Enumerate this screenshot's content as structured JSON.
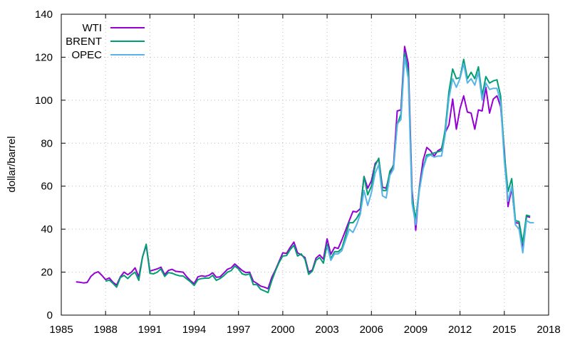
{
  "chart_data": {
    "type": "line",
    "title": "",
    "xlabel": "",
    "ylabel": "dollar/barrel",
    "xlim": [
      1985,
      2018
    ],
    "ylim": [
      0,
      140
    ],
    "xticks": [
      1985,
      1988,
      1991,
      1994,
      1997,
      2000,
      2003,
      2006,
      2009,
      2012,
      2015,
      2018
    ],
    "yticks": [
      0,
      20,
      40,
      60,
      80,
      100,
      120,
      140
    ],
    "grid": true,
    "legend": "top-left",
    "x_step": "quarterly",
    "series": [
      {
        "name": "WTI",
        "color": "#9400d3",
        "start": 1986.0,
        "values": [
          15.5,
          15.3,
          15,
          15.2,
          18,
          19.5,
          20.2,
          18.5,
          16.5,
          17.3,
          15.3,
          14,
          17.8,
          20,
          18.8,
          20,
          22,
          17.8,
          27,
          32.5,
          20.5,
          21,
          21.5,
          22.3,
          18.8,
          20.8,
          21.3,
          20.4,
          20.2,
          20,
          17.8,
          16,
          14.6,
          17.8,
          18.3,
          18,
          18.5,
          19.7,
          17.6,
          17.8,
          19.5,
          21.3,
          22,
          23.8,
          22.3,
          20.8,
          19.8,
          20,
          15.8,
          14.8,
          13.5,
          13,
          12.3,
          17.5,
          21,
          25,
          29,
          28.7,
          31.5,
          34,
          29,
          28,
          26.8,
          20,
          21,
          26.5,
          28,
          26,
          35.5,
          28.3,
          31.5,
          31,
          35,
          39.5,
          44,
          48.3,
          48,
          49.5,
          64.5,
          59,
          62.5,
          70.5,
          72.5,
          59.5,
          59,
          66,
          70,
          95,
          95.5,
          125,
          117,
          58,
          39.5,
          59.5,
          72,
          78,
          76.5,
          74,
          76.5,
          77.5,
          85,
          88.5,
          100.5,
          86.5,
          96,
          102,
          94.5,
          94,
          86.5,
          95.5,
          95,
          106,
          94,
          100.5,
          102,
          97,
          77,
          50.5,
          59,
          43,
          42.8,
          30.5,
          46,
          45.5
        ]
      },
      {
        "name": "BRENT",
        "color": "#009e73",
        "start": 1988.0,
        "values": [
          15.8,
          16.3,
          14.8,
          13,
          17.5,
          18.5,
          17,
          18.8,
          20,
          16.2,
          27,
          33,
          19.5,
          19.2,
          20,
          21.5,
          18,
          19.8,
          19.5,
          18.8,
          18.3,
          18.2,
          16.8,
          15.5,
          13.8,
          16.5,
          17,
          17.2,
          17.2,
          18.5,
          16.2,
          17,
          18.3,
          20,
          20.7,
          22.8,
          21.5,
          19.2,
          18.7,
          19.2,
          14.2,
          14.2,
          12,
          11.3,
          10.5,
          16,
          20.5,
          24.5,
          27.5,
          27.7,
          30.5,
          32.5,
          27.5,
          28.5,
          26,
          19,
          20.5,
          25.5,
          26.8,
          24.2,
          33,
          26.2,
          29.5,
          29.5,
          31,
          37,
          43,
          43,
          45,
          48,
          64.5,
          56,
          60,
          69.5,
          73,
          58,
          58,
          67,
          69.5,
          88.5,
          93.5,
          122,
          113,
          55,
          44.5,
          59,
          68.5,
          74.5,
          74.8,
          75.5,
          76,
          76.5,
          86.5,
          104,
          114.5,
          110,
          110.5,
          119,
          110,
          113,
          110,
          115.5,
          102,
          111,
          108,
          109,
          109.5,
          102,
          75,
          57.5,
          63.5,
          44,
          43.5,
          33.5,
          46.5,
          46
        ]
      },
      {
        "name": "OPEC",
        "color": "#56b4e9",
        "start": 2003.0,
        "values": [
          32,
          25.5,
          28.5,
          28.5,
          30,
          35,
          40,
          38.5,
          42,
          47,
          58,
          51,
          57,
          66,
          70,
          55.5,
          54.5,
          65,
          68,
          89,
          91,
          120,
          110,
          52,
          42,
          58,
          68,
          73.5,
          74.5,
          73.5,
          74,
          74,
          84,
          101,
          110,
          106,
          110,
          117,
          108,
          110,
          107,
          113,
          100,
          108,
          105,
          105.5,
          105.5,
          99,
          72,
          53,
          60,
          42,
          40,
          29,
          44,
          43,
          43
        ]
      }
    ]
  }
}
